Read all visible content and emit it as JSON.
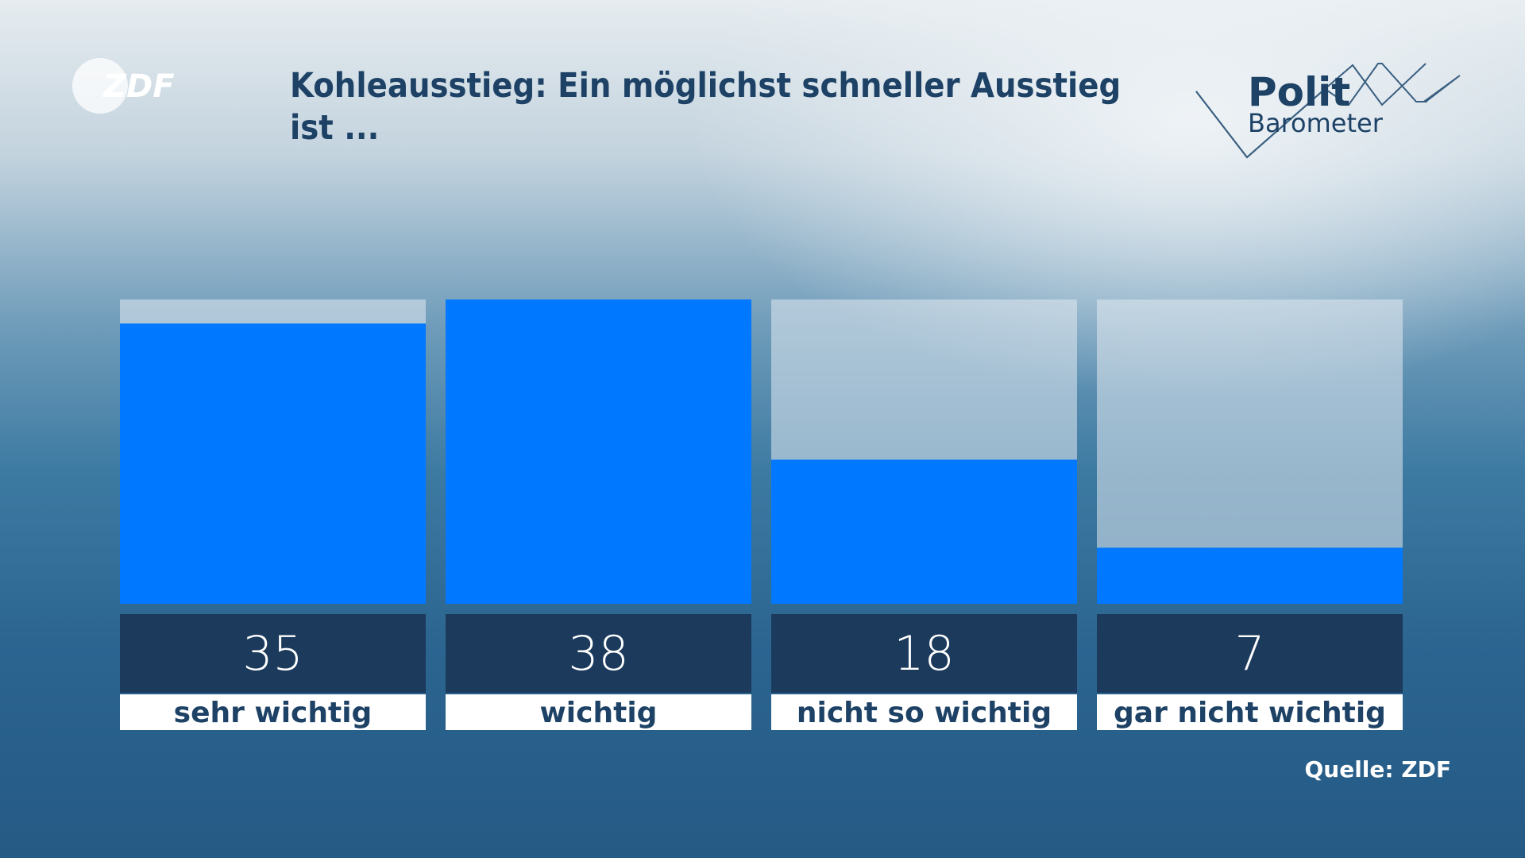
{
  "chart_data": {
    "type": "bar",
    "title": "Kohleausstieg: Ein möglichst schneller Ausstieg ist ...",
    "categories": [
      "sehr wichtig",
      "wichtig",
      "nicht so wichtig",
      "gar nicht wichtig"
    ],
    "values": [
      35,
      38,
      18,
      7
    ],
    "color": "#0078ff",
    "ylim": [
      0,
      38
    ],
    "source": "Quelle: ZDF"
  },
  "branding": {
    "broadcaster": "ZDF",
    "show_title_1": "Polit",
    "show_title_2": "Barometer"
  }
}
